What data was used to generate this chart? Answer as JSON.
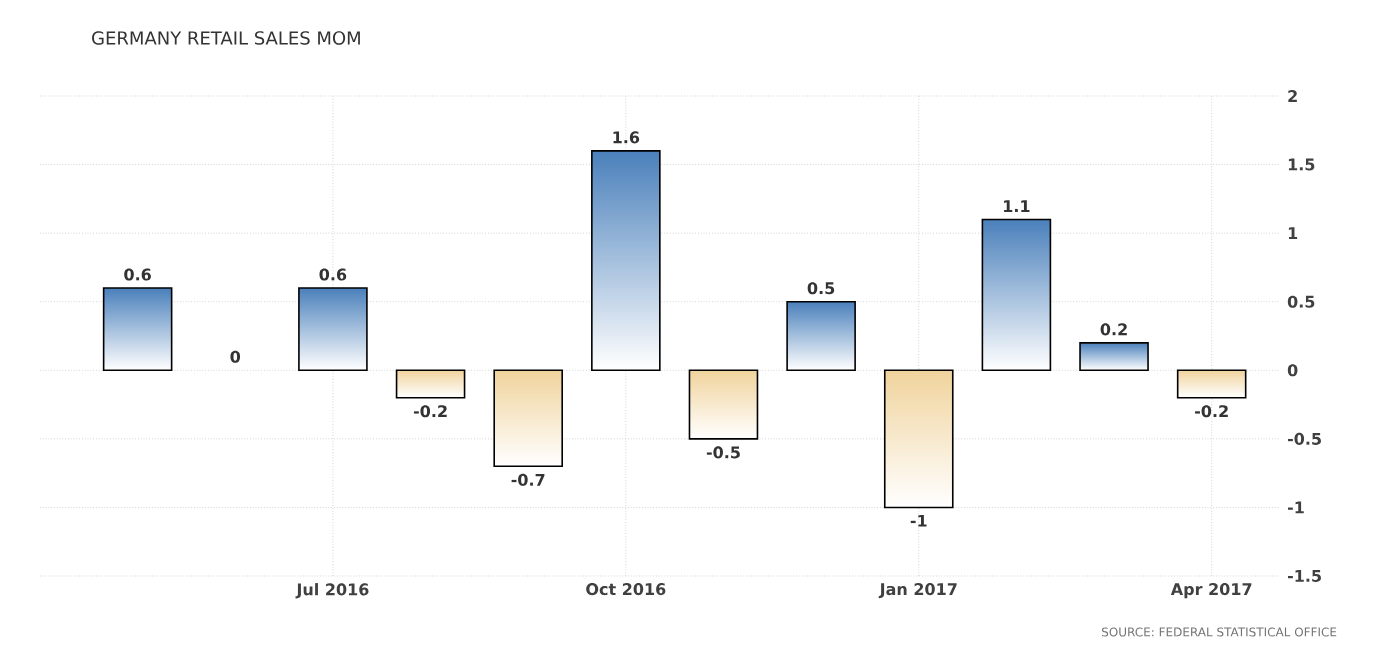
{
  "chart_data": {
    "type": "bar",
    "title": "GERMANY RETAIL SALES MOM",
    "categories": [
      null,
      null,
      "Jul 2016",
      null,
      null,
      "Oct 2016",
      null,
      null,
      "Jan 2017",
      null,
      null,
      "Apr 2017"
    ],
    "values": [
      0.6,
      0,
      0.6,
      -0.2,
      -0.7,
      1.6,
      -0.5,
      0.5,
      -1,
      1.1,
      0.2,
      -0.2
    ],
    "colors": [
      "#4a80bb",
      "#4a80bb",
      "#4a80bb",
      "#f0d39c",
      "#f0d39c",
      "#4a80bb",
      "#f0d39c",
      "#4a80bb",
      "#f0d39c",
      "#4a80bb",
      "#4a80bb",
      "#f0d39c"
    ],
    "ylim": [
      -1.5,
      2
    ],
    "yticks": [
      -1.5,
      -1,
      -0.5,
      0,
      0.5,
      1,
      1.5,
      2
    ],
    "grid": true,
    "data_labels": true,
    "annotations": [
      "SOURCE: FEDERAL STATISTICAL OFFICE"
    ]
  }
}
